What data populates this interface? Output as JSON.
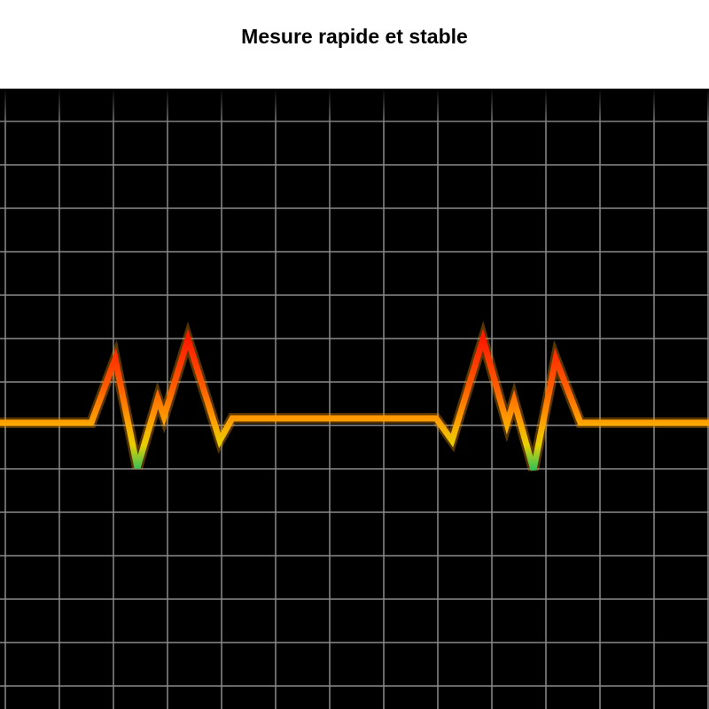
{
  "header": {
    "title": "Mesure rapide et stable"
  },
  "graphic": {
    "icon": "heartbeat-ecg-line",
    "background_color": "#000000",
    "grid_color": "#8a8a8a",
    "line_gradient": [
      "#ff1a00",
      "#ff9a00",
      "#f0d000",
      "#22c060"
    ]
  }
}
